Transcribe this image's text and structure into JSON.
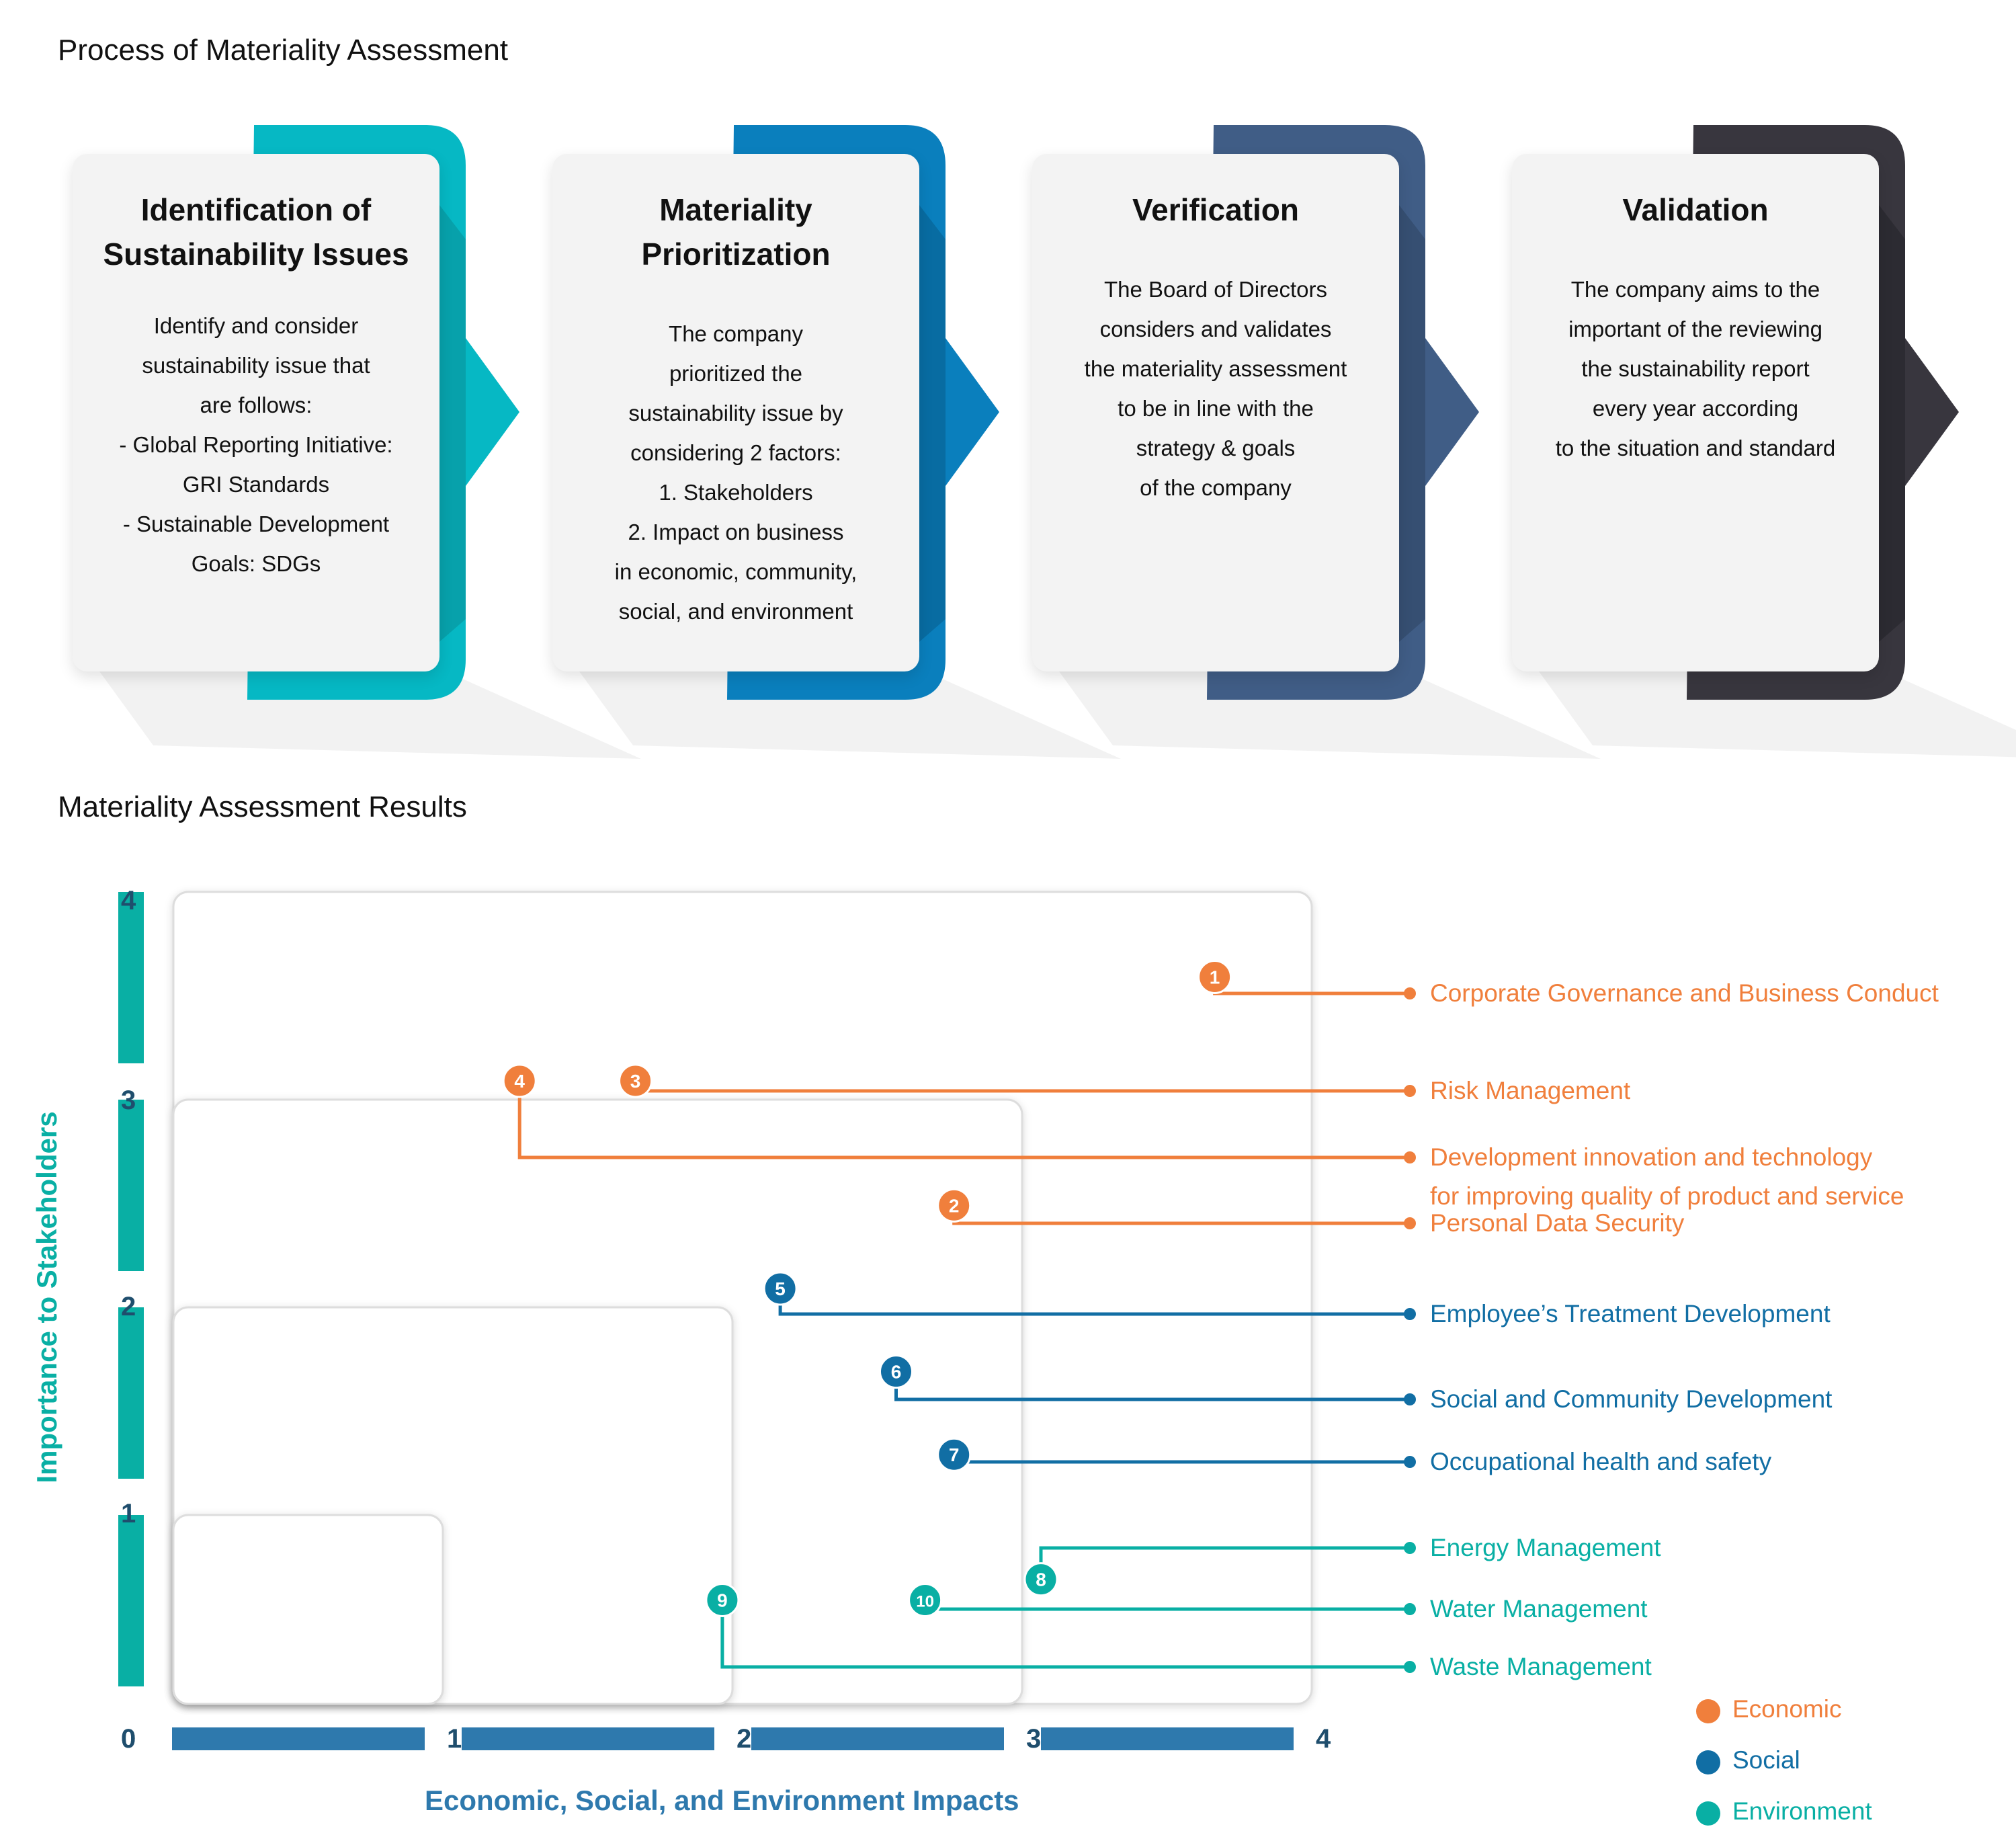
{
  "sections": {
    "process_title": "Process of Materiality Assessment",
    "results_title": "Materiality Assessment Results"
  },
  "steps": [
    {
      "title_lines": [
        "Identification of",
        "Sustainability Issues"
      ],
      "body_lines": [
        "Identify and consider",
        "sustainability issue that",
        "are follows:",
        "- Global Reporting Initiative:",
        "GRI Standards",
        "- Sustainable Development",
        "Goals: SDGs"
      ],
      "color": "#06b8c4",
      "shadow_color": "#0a8e98"
    },
    {
      "title_lines": [
        "Materiality",
        "Prioritization"
      ],
      "body_lines": [
        "The company",
        "prioritized the",
        "sustainability issue by",
        "considering 2 factors:",
        "1. Stakeholders",
        "2. Impact on business",
        "in economic, community,",
        "social, and environment"
      ],
      "color": "#0a7fbd",
      "shadow_color": "#075d8c"
    },
    {
      "title_lines": [
        "Verification"
      ],
      "body_lines": [
        "The Board of Directors",
        "considers and validates",
        "the materiality assessment",
        "to be in line with the",
        "strategy & goals",
        "of the company"
      ],
      "color": "#405d86",
      "shadow_color": "#2d4363"
    },
    {
      "title_lines": [
        "Validation"
      ],
      "body_lines": [
        "The company aims to the",
        "important of the reviewing",
        "the sustainability report",
        "every year according",
        "to the situation and standard"
      ],
      "color": "#38363e",
      "shadow_color": "#232228"
    }
  ],
  "chart_data": {
    "type": "scatter",
    "title": "Materiality Assessment Results",
    "xlabel": "Economic, Social, and Environment Impacts",
    "ylabel": "Importance to Stakeholders",
    "xlim": [
      0,
      4
    ],
    "ylim": [
      0,
      4
    ],
    "x_ticks": [
      "0",
      "1",
      "2",
      "3",
      "4"
    ],
    "y_ticks": [
      "0",
      "1",
      "2",
      "3",
      "4"
    ],
    "grid": false,
    "legend_position": "bottom-right",
    "colors": {
      "Economic": "#f07f3c",
      "Social": "#116ea4",
      "Environment": "#09afa4",
      "y_axis": "#09afa4",
      "x_axis": "#2e79ad",
      "tick": "#1f4e6d"
    },
    "legend": [
      "Economic",
      "Social",
      "Environment"
    ],
    "points": [
      {
        "id": "1",
        "label": "Corporate Governance and Business Conduct",
        "category": "Economic",
        "x": 3.6,
        "y": 3.5
      },
      {
        "id": "2",
        "label": "Development innovation and technology for improving quality of product and service",
        "category": "Economic",
        "x": 2.7,
        "y": 2.4
      },
      {
        "id": "3",
        "label": "Personal Data Security",
        "category": "Economic",
        "x": 1.6,
        "y": 3.0
      },
      {
        "id": "4",
        "label": "Risk Management",
        "category": "Economic",
        "x": 1.2,
        "y": 3.0
      },
      {
        "id": "5",
        "label": "Employee’s Treatment Development",
        "category": "Social",
        "x": 2.1,
        "y": 2.0
      },
      {
        "id": "6",
        "label": "Social and Community Development",
        "category": "Social",
        "x": 2.5,
        "y": 1.6
      },
      {
        "id": "7",
        "label": "Occupational health and safety",
        "category": "Social",
        "x": 2.7,
        "y": 1.2
      },
      {
        "id": "8",
        "label": "Energy Management",
        "category": "Environment",
        "x": 3.0,
        "y": 0.6
      },
      {
        "id": "9",
        "label": "Water Management",
        "category": "Environment",
        "x": 1.9,
        "y": 0.5
      },
      {
        "id": "10",
        "label": "Waste Management",
        "category": "Environment",
        "x": 2.6,
        "y": 0.5
      }
    ],
    "label_lines": [
      [
        "Corporate Governance and Business Conduct"
      ],
      [
        "Personal Data Security"
      ],
      [
        "Risk Management"
      ],
      [
        "Development innovation and technology",
        "for improving quality of product and service"
      ],
      [
        "Employee’s Treatment Development"
      ],
      [
        "Social and Community Development"
      ],
      [
        "Occupational health and safety"
      ],
      [
        "Energy Management"
      ],
      [
        "Waste Management"
      ],
      [
        "Water Management"
      ]
    ],
    "label_order": [
      "1",
      "3",
      "4",
      "2",
      "5",
      "6",
      "7",
      "8",
      "10",
      "9"
    ]
  }
}
